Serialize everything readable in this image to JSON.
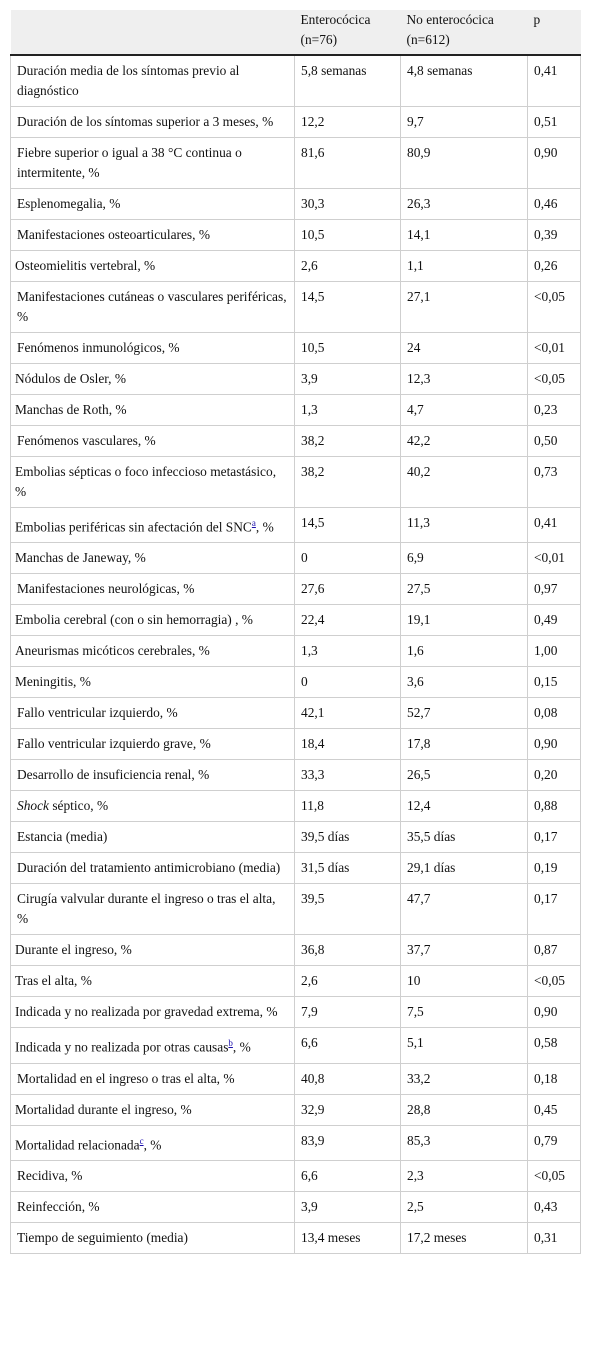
{
  "header": {
    "col0": "",
    "col1": "Enterocócica (n=76)",
    "col2": "No enterocócica (n=612)",
    "col3": "p"
  },
  "rows": [
    {
      "label": "Duración media de los síntomas previo al diagnóstico",
      "a": "5,8 semanas",
      "b": "4,8 semanas",
      "p": "0,41"
    },
    {
      "label": "Duración de los síntomas superior a 3 meses, %",
      "a": "12,2",
      "b": "9,7",
      "p": "0,51"
    },
    {
      "label": "Fiebre superior o igual a 38 °C continua o intermitente, %",
      "a": "81,6",
      "b": "80,9",
      "p": "0,90"
    },
    {
      "label": "Esplenomegalia, %",
      "a": "30,3",
      "b": "26,3",
      "p": "0,46"
    },
    {
      "label": "Manifestaciones osteoarticulares, %",
      "a": "10,5",
      "b": "14,1",
      "p": "0,39"
    },
    {
      "label": "Osteomielitis vertebral, %",
      "a": "2,6",
      "b": "1,1",
      "p": "0,26"
    },
    {
      "label": "Manifestaciones cutáneas o vasculares periféricas, %",
      "a": "14,5",
      "b": "27,1",
      "p": "<0,05"
    },
    {
      "label": "Fenómenos inmunológicos, %",
      "a": "10,5",
      "b": "24",
      "p": "<0,01"
    },
    {
      "label": "Nódulos de Osler, %",
      "a": "3,9",
      "b": "12,3",
      "p": "<0,05"
    },
    {
      "label": "Manchas de Roth, %",
      "a": "1,3",
      "b": "4,7",
      "p": "0,23"
    },
    {
      "label": "Fenómenos vasculares, %",
      "a": "38,2",
      "b": "42,2",
      "p": "0,50"
    },
    {
      "label": "Embolias sépticas o foco infeccioso metastásico, %",
      "a": "38,2",
      "b": "40,2",
      "p": "0,73"
    },
    {
      "label_pre": "Embolias periféricas sin afectación del SNC",
      "label_sup": "a",
      "label_post": ", %",
      "a": "14,5",
      "b": "11,3",
      "p": "0,41"
    },
    {
      "label": "Manchas de Janeway, %",
      "a": "0",
      "b": "6,9",
      "p": "<0,01"
    },
    {
      "label": "Manifestaciones neurológicas, %",
      "a": "27,6",
      "b": "27,5",
      "p": "0,97"
    },
    {
      "label": "Embolia cerebral (con o sin hemorragia) , %",
      "a": "22,4",
      "b": "19,1",
      "p": "0,49"
    },
    {
      "label": "Aneurismas micóticos cerebrales, %",
      "a": "1,3",
      "b": "1,6",
      "p": "1,00"
    },
    {
      "label": "Meningitis, %",
      "a": "0",
      "b": "3,6",
      "p": "0,15"
    },
    {
      "label": "Fallo ventricular izquierdo, %",
      "a": "42,1",
      "b": "52,7",
      "p": "0,08"
    },
    {
      "label": "Fallo ventricular izquierdo grave, %",
      "a": "18,4",
      "b": "17,8",
      "p": "0,90"
    },
    {
      "label": "Desarrollo de insuficiencia renal, %",
      "a": "33,3",
      "b": "26,5",
      "p": "0,20"
    },
    {
      "label_ital": "Shock",
      "label_post": " séptico, %",
      "a": "11,8",
      "b": "12,4",
      "p": "0,88"
    },
    {
      "label": "Estancia (media)",
      "a": "39,5 días",
      "b": "35,5 días",
      "p": "0,17"
    },
    {
      "label": "Duración del tratamiento antimicrobiano (media)",
      "a": "31,5 días",
      "b": "29,1 días",
      "p": "0,19"
    },
    {
      "label": "Cirugía valvular durante el ingreso o tras el alta, %",
      "a": "39,5",
      "b": "47,7",
      "p": "0,17"
    },
    {
      "label": "Durante el ingreso, %",
      "a": "36,8",
      "b": "37,7",
      "p": "0,87"
    },
    {
      "label": "Tras el alta, %",
      "a": "2,6",
      "b": "10",
      "p": "<0,05"
    },
    {
      "label": "Indicada y no realizada por gravedad extrema, %",
      "a": "7,9",
      "b": "7,5",
      "p": "0,90"
    },
    {
      "label_pre": "Indicada y no realizada por otras causas",
      "label_sup": "b",
      "label_post": ", %",
      "a": "6,6",
      "b": "5,1",
      "p": "0,58"
    },
    {
      "label": "Mortalidad en el ingreso o tras el alta, %",
      "a": "40,8",
      "b": "33,2",
      "p": "0,18"
    },
    {
      "label": "Mortalidad durante el ingreso, %",
      "a": "32,9",
      "b": "28,8",
      "p": "0,45"
    },
    {
      "label_pre": "Mortalidad relacionada",
      "label_sup": "c",
      "label_post": ", %",
      "a": "83,9",
      "b": "85,3",
      "p": "0,79"
    },
    {
      "label": "Recidiva, %",
      "a": "6,6",
      "b": "2,3",
      "p": "<0,05"
    },
    {
      "label": "Reinfección, %",
      "a": "3,9",
      "b": "2,5",
      "p": "0,43"
    },
    {
      "label": "Tiempo de seguimiento (media)",
      "a": "13,4 meses",
      "b": "17,2 meses",
      "p": "0,31"
    }
  ]
}
